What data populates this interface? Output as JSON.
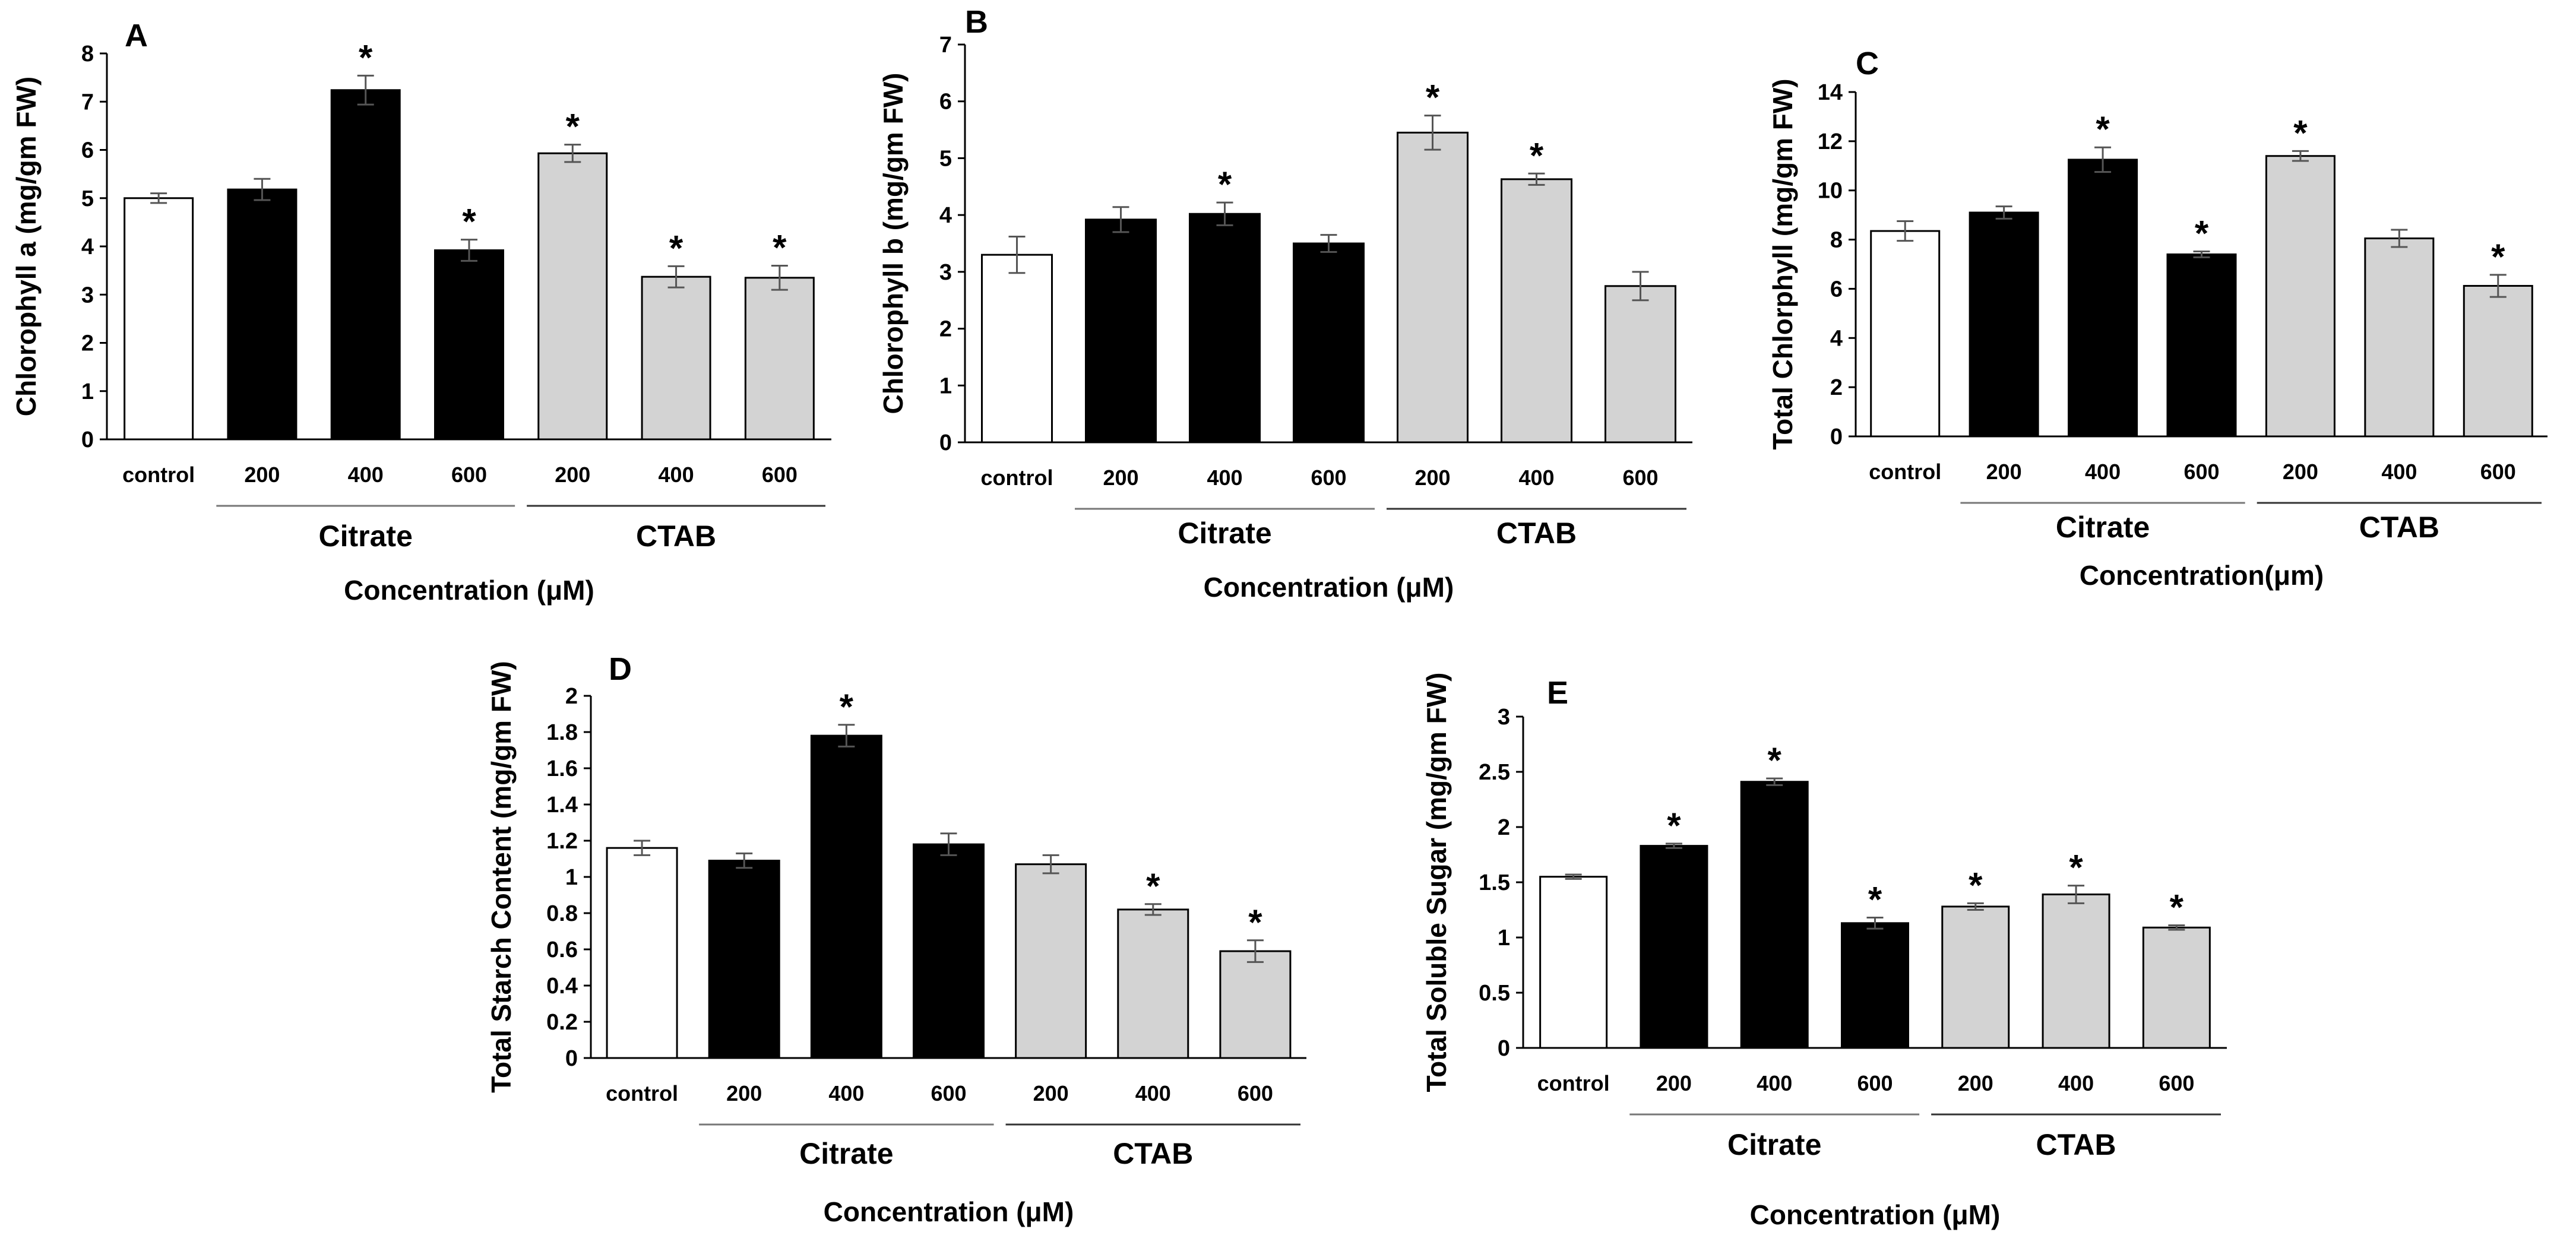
{
  "colors": {
    "control": "#ffffff",
    "citrate": "#000000",
    "ctab": "#d3d3d3",
    "axis": "#000000",
    "error": "#555555"
  },
  "chart_data": [
    {
      "panel": "A",
      "type": "bar",
      "categories": [
        "control",
        "200",
        "400",
        "600",
        "200",
        "400",
        "600"
      ],
      "groups": [
        "control",
        "citrate",
        "citrate",
        "citrate",
        "ctab",
        "ctab",
        "ctab"
      ],
      "values": [
        5.0,
        5.18,
        7.24,
        3.92,
        5.93,
        3.37,
        3.35
      ],
      "errors": [
        0.1,
        0.22,
        0.3,
        0.22,
        0.18,
        0.22,
        0.25
      ],
      "significant": [
        false,
        false,
        true,
        true,
        true,
        true,
        true
      ],
      "ylabel": "Chlorophyll a  (mg/gm FW)",
      "xlabel": "Concentration (μM)",
      "group_labels": [
        "Citrate",
        "CTAB"
      ],
      "sig_symbol": "*",
      "ylim": [
        0,
        8
      ],
      "yticks": [
        "0",
        "1",
        "2",
        "3",
        "4",
        "5",
        "6",
        "7",
        "8"
      ]
    },
    {
      "panel": "B",
      "type": "bar",
      "categories": [
        "control",
        "200",
        "400",
        "600",
        "200",
        "400",
        "600"
      ],
      "groups": [
        "control",
        "citrate",
        "citrate",
        "citrate",
        "ctab",
        "ctab",
        "ctab"
      ],
      "values": [
        3.3,
        3.92,
        4.02,
        3.5,
        5.45,
        4.63,
        2.75
      ],
      "errors": [
        0.32,
        0.22,
        0.2,
        0.15,
        0.3,
        0.1,
        0.25
      ],
      "significant": [
        false,
        false,
        true,
        false,
        true,
        true,
        false
      ],
      "ylabel": "Chlorophyll b  (mg/gm FW)",
      "xlabel": "Concentration (μM)",
      "group_labels": [
        "Citrate",
        "CTAB"
      ],
      "sig_symbol": "*",
      "ylim": [
        0,
        7
      ],
      "yticks": [
        "0",
        "1",
        "2",
        "3",
        "4",
        "5",
        "6",
        "7"
      ]
    },
    {
      "panel": "C",
      "type": "bar",
      "categories": [
        "control",
        "200",
        "400",
        "600",
        "200",
        "400",
        "600"
      ],
      "groups": [
        "control",
        "citrate",
        "citrate",
        "citrate",
        "ctab",
        "ctab",
        "ctab"
      ],
      "values": [
        8.35,
        9.1,
        11.25,
        7.4,
        11.4,
        8.05,
        6.12
      ],
      "errors": [
        0.4,
        0.25,
        0.5,
        0.12,
        0.2,
        0.35,
        0.45
      ],
      "significant": [
        false,
        false,
        true,
        true,
        true,
        false,
        true
      ],
      "ylabel": "Total Chlorphyll (mg/gm FW)",
      "xlabel": "Concentration(μm)",
      "group_labels": [
        "Citrate",
        "CTAB"
      ],
      "sig_symbol": "*",
      "ylim": [
        0,
        14
      ],
      "yticks": [
        "0",
        "2",
        "4",
        "6",
        "8",
        "10",
        "12",
        "14"
      ]
    },
    {
      "panel": "D",
      "type": "bar",
      "categories": [
        "control",
        "200",
        "400",
        "600",
        "200",
        "400",
        "600"
      ],
      "groups": [
        "control",
        "citrate",
        "citrate",
        "citrate",
        "ctab",
        "ctab",
        "ctab"
      ],
      "values": [
        1.16,
        1.09,
        1.78,
        1.18,
        1.07,
        0.82,
        0.59
      ],
      "errors": [
        0.04,
        0.04,
        0.06,
        0.06,
        0.05,
        0.03,
        0.06
      ],
      "significant": [
        false,
        false,
        true,
        false,
        false,
        true,
        true
      ],
      "ylabel": "Total Starch Content (mg/gm FW)",
      "xlabel": "Concentration (μM)",
      "group_labels": [
        "Citrate",
        "CTAB"
      ],
      "sig_symbol": "*",
      "ylim": [
        0,
        2
      ],
      "yticks": [
        "0",
        "0.2",
        "0.4",
        "0.6",
        "0.8",
        "1",
        "1.2",
        "1.4",
        "1.6",
        "1.8",
        "2"
      ]
    },
    {
      "panel": "E",
      "type": "bar",
      "categories": [
        "control",
        "200",
        "400",
        "600",
        "200",
        "400",
        "600"
      ],
      "groups": [
        "control",
        "citrate",
        "citrate",
        "citrate",
        "ctab",
        "ctab",
        "ctab"
      ],
      "values": [
        1.55,
        1.83,
        2.41,
        1.13,
        1.28,
        1.39,
        1.09
      ],
      "errors": [
        0.02,
        0.02,
        0.03,
        0.05,
        0.03,
        0.08,
        0.02
      ],
      "significant": [
        false,
        true,
        true,
        true,
        true,
        true,
        true
      ],
      "ylabel": "Total Soluble Sugar (mg/gm FW)",
      "xlabel": "Concentration (μM)",
      "group_labels": [
        "Citrate",
        "CTAB"
      ],
      "sig_symbol": "*",
      "ylim": [
        0,
        3
      ],
      "yticks": [
        "0",
        "0.5",
        "1",
        "1.5",
        "2",
        "2.5",
        "3"
      ]
    }
  ]
}
